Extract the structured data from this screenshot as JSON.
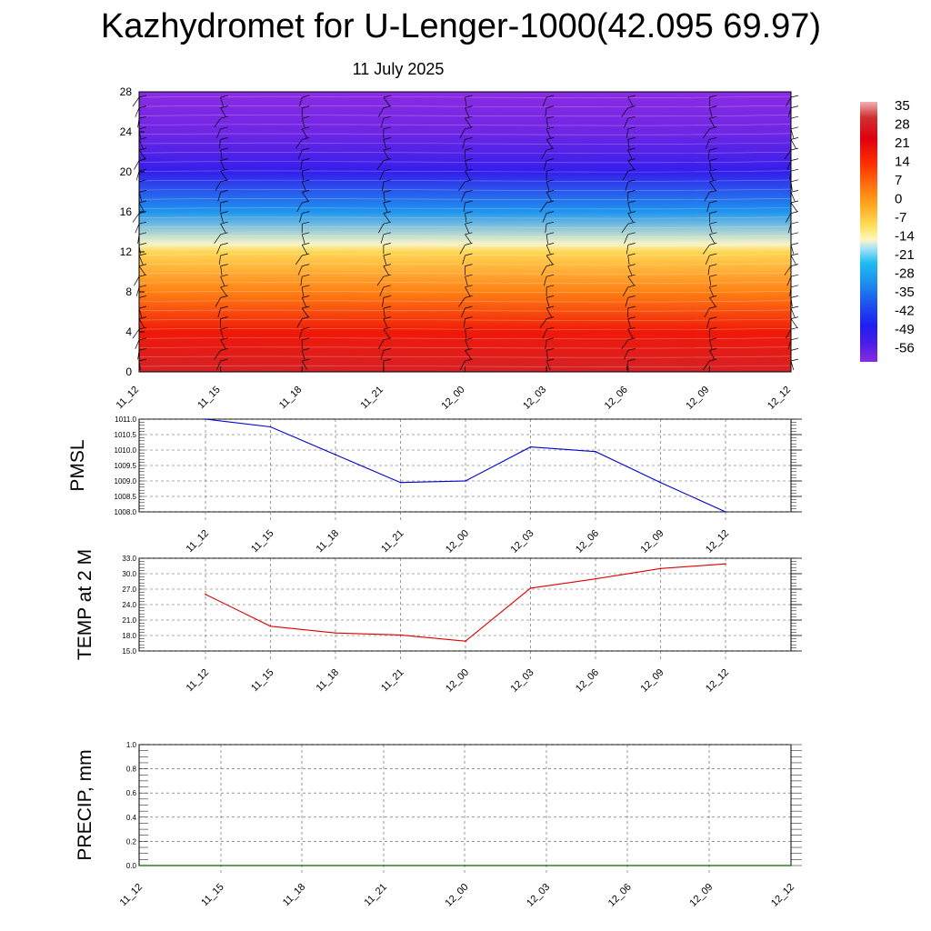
{
  "title": "Kazhydromet for U-Lenger-1000(42.095 69.97)",
  "subtitle": "11 July 2025",
  "chart_data": [
    {
      "type": "heatmap",
      "description_labels": {
        "x_ticks": [
          "11_12",
          "11_15",
          "11_18",
          "11_21",
          "12_00",
          "12_03",
          "12_06",
          "12_09",
          "12_12"
        ],
        "y_ticks": [
          "0",
          "4",
          "8",
          "12",
          "16",
          "20",
          "24",
          "28"
        ]
      },
      "ylim": [
        0,
        28
      ],
      "colorbar": {
        "labels": [
          "35",
          "28",
          "21",
          "14",
          "7",
          "0",
          "-7",
          "-14",
          "-21",
          "-28",
          "-35",
          "-42",
          "-49",
          "-56"
        ],
        "range": [
          -63,
          42
        ]
      },
      "temperature_by_height": [
        {
          "h": 0,
          "t": 33
        },
        {
          "h": 4,
          "t": 22
        },
        {
          "h": 8,
          "t": 6
        },
        {
          "h": 12,
          "t": -7
        },
        {
          "h": 12.8,
          "t": -14
        },
        {
          "h": 16,
          "t": -30
        },
        {
          "h": 20,
          "t": -52
        },
        {
          "h": 24,
          "t": -60
        },
        {
          "h": 28,
          "t": -63
        }
      ]
    },
    {
      "type": "line",
      "ylabel": "PMSL",
      "ylim": [
        1008.0,
        1011.0
      ],
      "y_ticks": [
        "1011.0",
        "1010.5",
        "1010.0",
        "1009.5",
        "1009.0",
        "1008.5",
        "1008.0"
      ],
      "categories": [
        "11_12",
        "11_15",
        "11_18",
        "11_21",
        "12_00",
        "12_03",
        "12_06",
        "12_09",
        "12_12"
      ],
      "values": [
        1011.0,
        1010.75,
        1009.85,
        1008.95,
        1009.0,
        1010.1,
        1009.95,
        1008.95,
        1008.0
      ],
      "color": "#0000cc"
    },
    {
      "type": "line",
      "ylabel": "TEMP at 2 M",
      "ylim": [
        15.0,
        33.0
      ],
      "y_ticks": [
        "33.0",
        "30.0",
        "27.0",
        "24.0",
        "21.0",
        "18.0",
        "15.0"
      ],
      "categories": [
        "11_12",
        "11_15",
        "11_18",
        "11_21",
        "12_00",
        "12_03",
        "12_06",
        "12_09",
        "12_12"
      ],
      "values": [
        26.0,
        19.8,
        18.5,
        18.1,
        16.9,
        27.2,
        29.0,
        31.0,
        31.9
      ],
      "color": "#dd0000"
    },
    {
      "type": "line",
      "ylabel": "PRECIP, mm",
      "ylim": [
        0.0,
        1.0
      ],
      "y_ticks": [
        "1.0",
        "0.8",
        "0.6",
        "0.4",
        "0.2",
        "0.0"
      ],
      "categories": [
        "11_12",
        "11_15",
        "11_18",
        "11_21",
        "12_00",
        "12_03",
        "12_06",
        "12_09",
        "12_12"
      ],
      "values": [
        0,
        0,
        0,
        0,
        0,
        0,
        0,
        0,
        0
      ],
      "color": "#006600"
    }
  ]
}
